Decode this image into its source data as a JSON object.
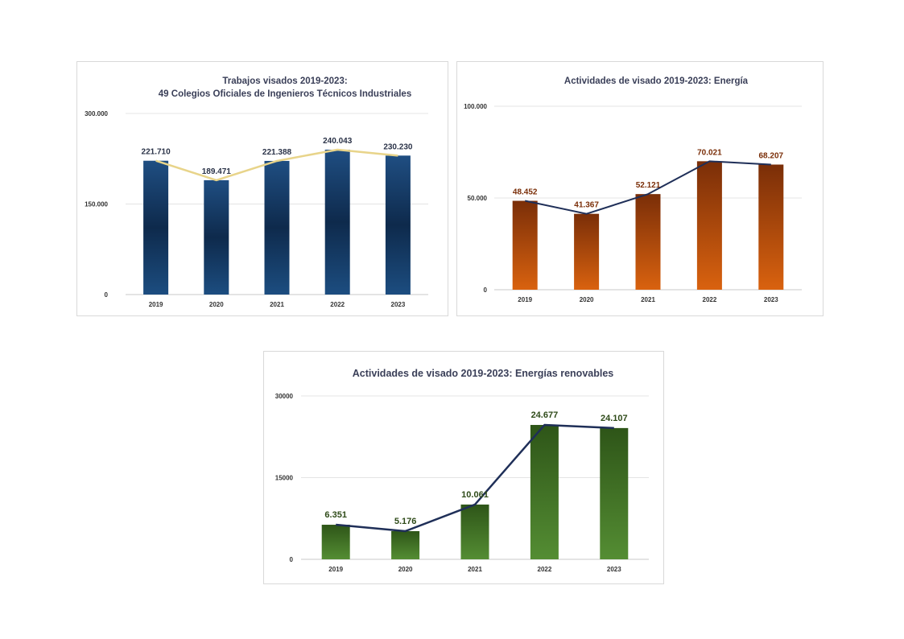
{
  "chart_data": [
    {
      "type": "bar",
      "title": "Trabajos visados 2019-2023:",
      "subtitle": "49 Colegios Oficiales de Ingenieros Técnicos Industriales",
      "categories": [
        "2019",
        "2020",
        "2021",
        "2022",
        "2023"
      ],
      "values": [
        221710,
        189471,
        221388,
        240043,
        230230
      ],
      "data_labels": [
        "221.710",
        "189.471",
        "221.388",
        "240.043",
        "230.230"
      ],
      "overlay": "line",
      "yticks": [
        0,
        150000,
        300000
      ],
      "ytick_labels": [
        "0",
        "150.000",
        "300.000"
      ],
      "ylim": [
        0,
        300000
      ],
      "grid": true,
      "colors": {
        "bar_top": "#1f4e82",
        "bar_mid": "#0e2a4c",
        "bar_bottom": "#1c4d80",
        "line": "#e8d48a",
        "label": "#2b3348"
      }
    },
    {
      "type": "bar",
      "title": "Actividades de visado 2019-2023: Energía",
      "categories": [
        "2019",
        "2020",
        "2021",
        "2022",
        "2023"
      ],
      "values": [
        48452,
        41367,
        52121,
        70021,
        68207
      ],
      "data_labels": [
        "48.452",
        "41.367",
        "52.121",
        "70.021",
        "68.207"
      ],
      "overlay": "line",
      "yticks": [
        0,
        50000,
        100000
      ],
      "ytick_labels": [
        "0",
        "50.000",
        "100.000"
      ],
      "ylim": [
        0,
        100000
      ],
      "grid": true,
      "colors": {
        "bar_top": "#7a2e08",
        "bar_bottom": "#d9620f",
        "line": "#1f2f58",
        "label": "#7a2e08"
      }
    },
    {
      "type": "bar",
      "title": "Actividades de visado 2019-2023: Energías renovables",
      "categories": [
        "2019",
        "2020",
        "2021",
        "2022",
        "2023"
      ],
      "values": [
        6351,
        5176,
        10061,
        24677,
        24107
      ],
      "data_labels": [
        "6.351",
        "5.176",
        "10.061",
        "24.677",
        "24.107"
      ],
      "overlay": "line",
      "yticks": [
        0,
        15000,
        30000
      ],
      "ytick_labels": [
        "0",
        "15000",
        "30000"
      ],
      "ylim": [
        0,
        30000
      ],
      "grid": true,
      "colors": {
        "bar_top": "#2e5518",
        "bar_bottom": "#548d33",
        "line": "#1f2f58",
        "label": "#2e4a18"
      }
    }
  ]
}
